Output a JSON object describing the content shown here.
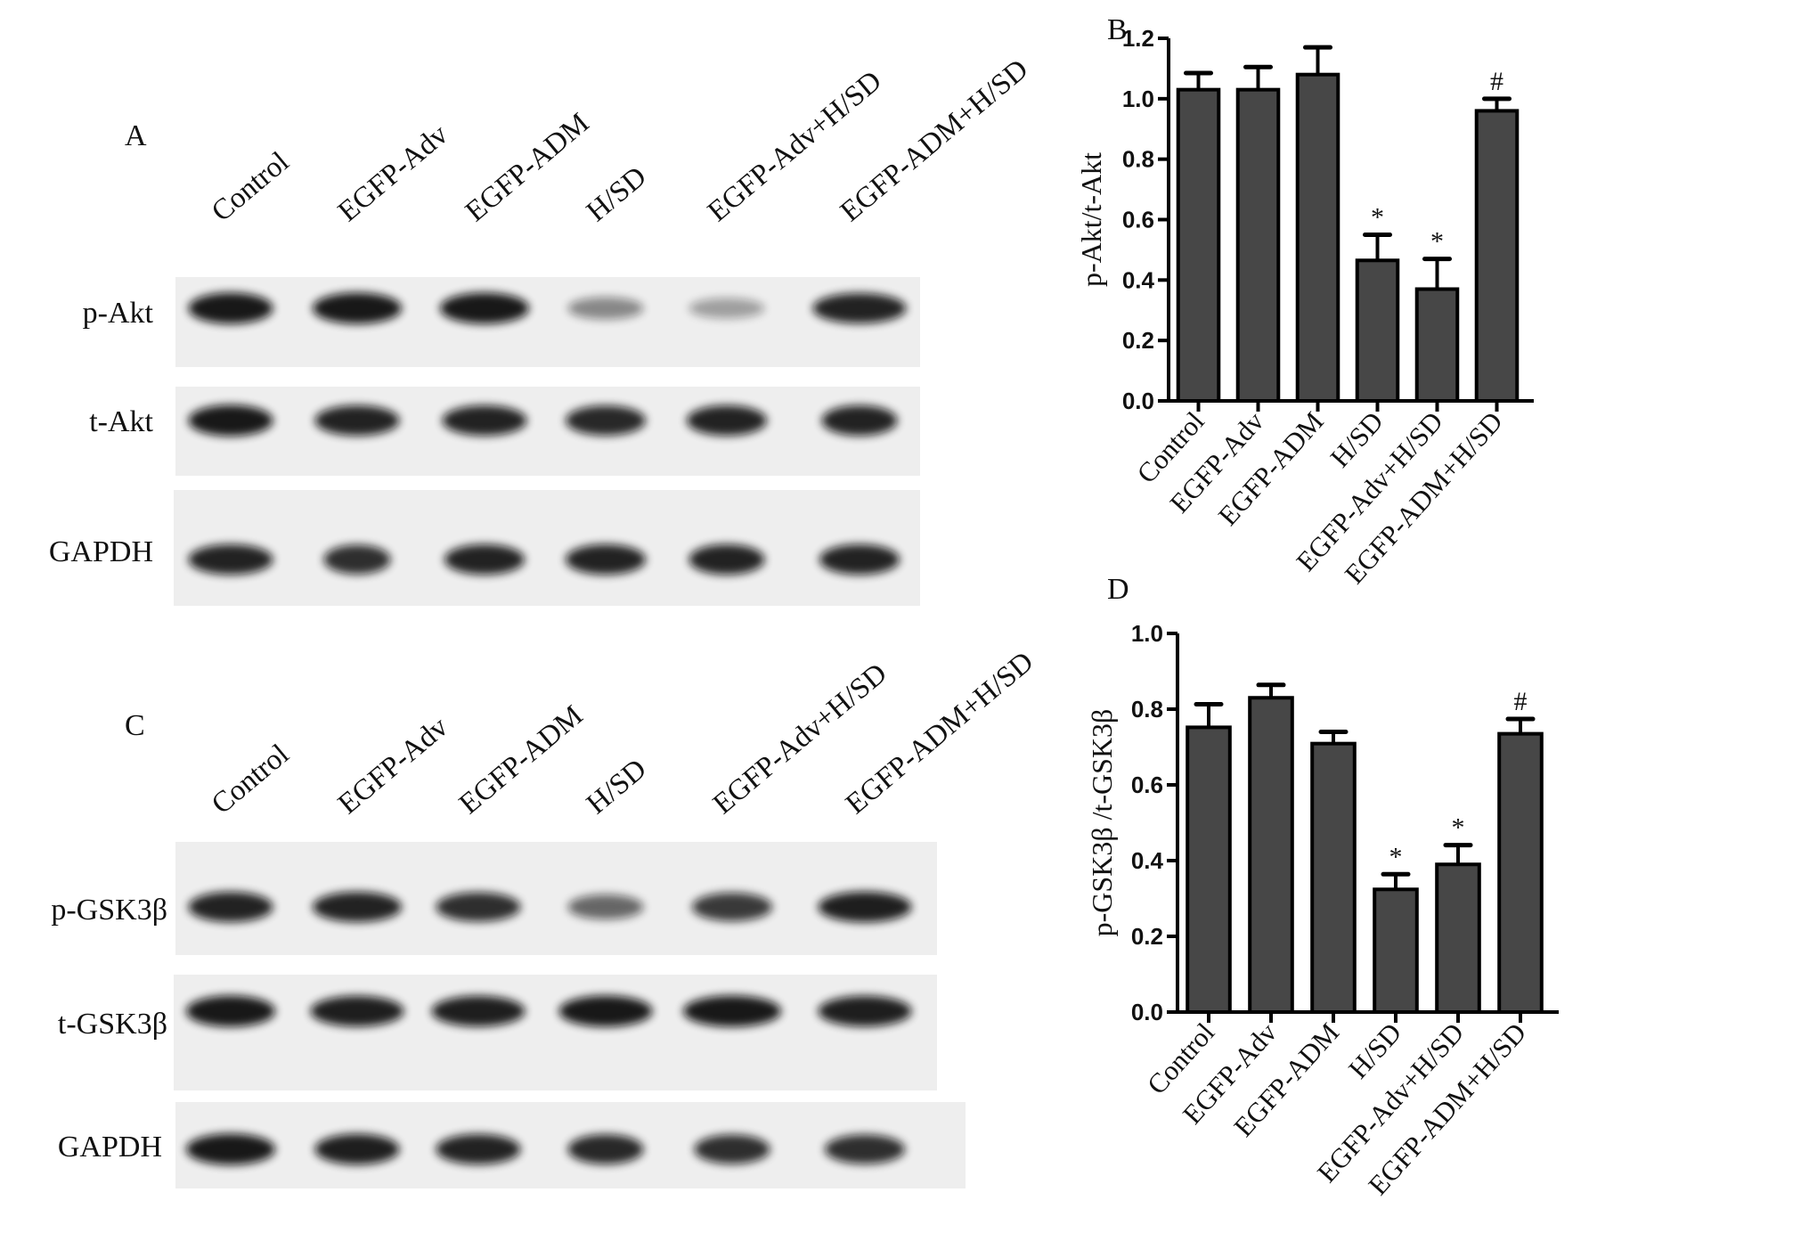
{
  "blots": [
    {
      "panel_label": "A",
      "lanes": [
        "Control",
        "EGFP-Adv",
        "EGFP-ADM",
        "H/SD",
        "EGFP-Adv+H/SD",
        "EGFP-ADM+H/SD"
      ],
      "rows": [
        "p-Akt",
        "t-Akt",
        "GAPDH"
      ]
    },
    {
      "panel_label": "C",
      "lanes": [
        "Control",
        "EGFP-Adv",
        "EGFP-ADM",
        "H/SD",
        "EGFP-Adv+H/SD",
        "EGFP-ADM+H/SD"
      ],
      "rows": [
        "p-GSK3β",
        "t-GSK3β",
        "GAPDH"
      ]
    }
  ],
  "chart_data": [
    {
      "panel_label": "B",
      "type": "bar",
      "categories": [
        "Control",
        "EGFP-Adv",
        "EGFP-ADM",
        "H/SD",
        "EGFP-Adv+H/SD",
        "EGFP-ADM+H/SD"
      ],
      "values": [
        1.03,
        1.03,
        1.08,
        0.465,
        0.37,
        0.96
      ],
      "error_upper": [
        0.055,
        0.075,
        0.09,
        0.085,
        0.1,
        0.04
      ],
      "annotations": [
        "",
        "",
        "",
        "*",
        "*",
        "#"
      ],
      "ylabel": "p-Akt/t-Akt",
      "xlabel": "",
      "ylim": [
        0,
        1.2
      ],
      "yticks": [
        "0.0",
        "0.2",
        "0.4",
        "0.6",
        "0.8",
        "1.0",
        "1.2"
      ],
      "grid": false,
      "bar_color": "#474747"
    },
    {
      "panel_label": "D",
      "type": "bar",
      "categories": [
        "Control",
        "EGFP-Adv",
        "EGFP-ADM",
        "H/SD",
        "EGFP-Adv+H/SD",
        "EGFP-ADM+H/SD"
      ],
      "values": [
        0.752,
        0.83,
        0.709,
        0.324,
        0.39,
        0.735
      ],
      "error_upper": [
        0.061,
        0.034,
        0.031,
        0.04,
        0.051,
        0.039
      ],
      "annotations": [
        "",
        "",
        "",
        "*",
        "*",
        "#"
      ],
      "ylabel": "p-GSK3β /t-GSK3β",
      "xlabel": "",
      "ylim": [
        0,
        1.0
      ],
      "yticks": [
        "0.0",
        "0.2",
        "0.4",
        "0.6",
        "0.8",
        "1.0"
      ],
      "grid": false,
      "bar_color": "#474747"
    }
  ]
}
